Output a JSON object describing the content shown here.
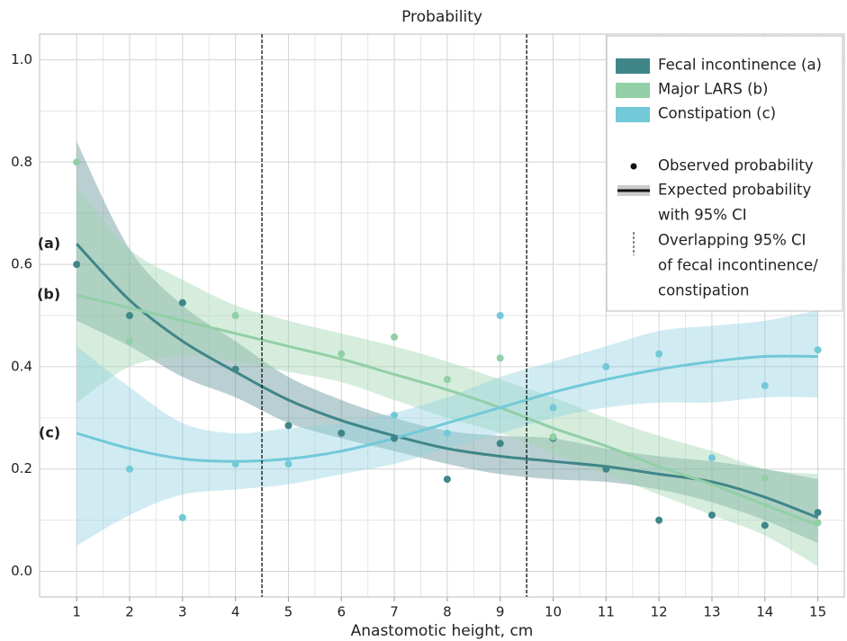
{
  "chart_data": {
    "type": "line",
    "title": "Probability",
    "x_label": "Anastomotic height, cm",
    "x": [
      1,
      2,
      3,
      4,
      5,
      6,
      7,
      8,
      9,
      10,
      11,
      12,
      13,
      14,
      15
    ],
    "xlim": [
      0.3,
      15.5
    ],
    "xticks": [
      1,
      2,
      3,
      4,
      5,
      6,
      7,
      8,
      9,
      10,
      11,
      12,
      13,
      14,
      15
    ],
    "ylim": [
      -0.05,
      1.05
    ],
    "yticks": [
      {
        "value": 0,
        "label": "0.0"
      },
      0.2,
      0.4,
      0.6,
      0.8,
      {
        "value": 1,
        "label": "1.0"
      }
    ],
    "grid": true,
    "minor_grid": true,
    "legend": "upper right",
    "vlines": [
      4.5,
      9.5
    ],
    "series": [
      {
        "name": "Fecal incontinence (a)",
        "label": "(a)",
        "color": "#3f8689",
        "band_color": "#5a8d92",
        "values": [
          0.6,
          0.5,
          0.525,
          0.395,
          0.285,
          0.27,
          0.26,
          0.18,
          0.25,
          0.26,
          0.2,
          0.1,
          0.11,
          0.09,
          0.115
        ],
        "fit": [
          0.64,
          0.53,
          0.45,
          0.39,
          0.335,
          0.295,
          0.265,
          0.24,
          0.225,
          0.215,
          0.205,
          0.19,
          0.175,
          0.145,
          0.105
        ],
        "ci_lower": [
          0.49,
          0.44,
          0.38,
          0.34,
          0.29,
          0.26,
          0.235,
          0.21,
          0.19,
          0.18,
          0.175,
          0.16,
          0.135,
          0.1,
          0.055
        ],
        "ci_upper": [
          0.84,
          0.63,
          0.52,
          0.45,
          0.38,
          0.335,
          0.3,
          0.275,
          0.265,
          0.26,
          0.24,
          0.225,
          0.215,
          0.2,
          0.18
        ]
      },
      {
        "name": "Major LARS (b)",
        "label": "(b)",
        "color": "#92cfa6",
        "band_color": "#9dd5ad",
        "values": [
          0.8,
          0.45,
          null,
          0.5,
          null,
          0.425,
          0.458,
          0.375,
          0.417,
          0.263,
          null,
          null,
          null,
          0.182,
          0.095
        ],
        "fit": [
          0.54,
          0.515,
          0.49,
          0.465,
          0.44,
          0.415,
          0.385,
          0.355,
          0.32,
          0.28,
          0.245,
          0.205,
          0.17,
          0.13,
          0.09
        ],
        "ci_lower": [
          0.33,
          0.4,
          0.42,
          0.41,
          0.39,
          0.37,
          0.335,
          0.3,
          0.27,
          0.23,
          0.19,
          0.15,
          0.11,
          0.07,
          0.01
        ],
        "ci_upper": [
          0.75,
          0.63,
          0.57,
          0.52,
          0.49,
          0.465,
          0.44,
          0.41,
          0.375,
          0.34,
          0.3,
          0.265,
          0.235,
          0.2,
          0.19
        ]
      },
      {
        "name": "Constipation (c)",
        "label": "(c)",
        "color": "#72c9d8",
        "band_color": "#8fd2df",
        "values": [
          null,
          0.2,
          0.105,
          0.21,
          0.21,
          null,
          0.305,
          0.27,
          0.5,
          0.32,
          0.4,
          0.425,
          0.222,
          0.363,
          0.433
        ],
        "fit": [
          0.27,
          0.24,
          0.22,
          0.215,
          0.22,
          0.235,
          0.26,
          0.29,
          0.32,
          0.35,
          0.375,
          0.395,
          0.41,
          0.42,
          0.42
        ],
        "ci_lower": [
          0.05,
          0.11,
          0.15,
          0.16,
          0.17,
          0.19,
          0.21,
          0.24,
          0.27,
          0.3,
          0.32,
          0.33,
          0.33,
          0.34,
          0.34
        ],
        "ci_upper": [
          0.44,
          0.36,
          0.29,
          0.27,
          0.28,
          0.29,
          0.31,
          0.34,
          0.38,
          0.41,
          0.44,
          0.47,
          0.48,
          0.49,
          0.51
        ]
      }
    ],
    "legend_notes": [
      [
        "Observed probability"
      ],
      [
        "Expected probability",
        "with 95% CI"
      ],
      [
        "Overlapping 95% CI",
        "of fecal incontinence/",
        "constipation"
      ]
    ]
  }
}
